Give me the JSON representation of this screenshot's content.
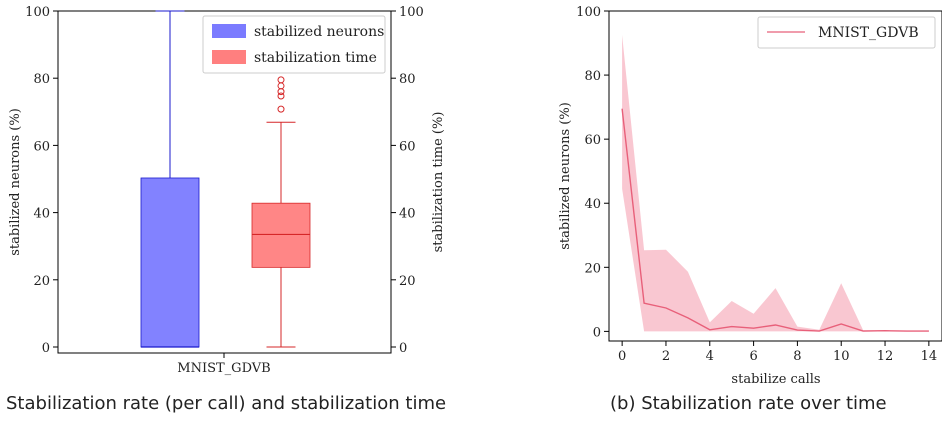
{
  "panel_a": {
    "caption": "Stabilization rate (per call) and stabilization time",
    "chart_data": {
      "type": "box",
      "categories": [
        "MNIST_GDVB"
      ],
      "ylabel_left": "stabilized neurons (%)",
      "ylabel_right": "stabilization time (%)",
      "ylim": [
        0,
        100
      ],
      "yticks": [
        0,
        20,
        40,
        60,
        80,
        100
      ],
      "legend": {
        "placement": "top-right"
      },
      "series": [
        {
          "name": "stabilized neurons",
          "color": "#7b7bff",
          "edge": "#1a1acc",
          "min": 0,
          "q1": 0,
          "median": 0,
          "q3": 50.3,
          "max": 100,
          "outliers": []
        },
        {
          "name": "stabilization time",
          "color": "#ff7f7f",
          "edge": "#d62728",
          "min": 0,
          "q1": 23.7,
          "median": 33.5,
          "q3": 42.8,
          "max": 66.9,
          "outliers": [
            70.8,
            74.7,
            76.0,
            77.7,
            79.5
          ]
        }
      ]
    }
  },
  "panel_b": {
    "caption": "(b) Stabilization rate over time",
    "chart_data": {
      "type": "line",
      "xlabel": "stabilize calls",
      "ylabel": "stabilized neurons (%)",
      "xlim": [
        -0.6,
        14.6
      ],
      "ylim": [
        -3,
        100
      ],
      "xticks": [
        0,
        2,
        4,
        6,
        8,
        10,
        12,
        14
      ],
      "yticks": [
        0,
        20,
        40,
        60,
        80,
        100
      ],
      "legend": {
        "placement": "top-right"
      },
      "series": [
        {
          "name": "MNIST_GDVB",
          "color": "#e8607a",
          "band_color": "#f7b9c6",
          "x": [
            0,
            1,
            2,
            3,
            4,
            5,
            6,
            7,
            8,
            9,
            10,
            11,
            12,
            13,
            14
          ],
          "y": [
            69.5,
            8.8,
            7.3,
            4.2,
            0.5,
            1.5,
            1.0,
            2.0,
            0.4,
            0.1,
            2.3,
            0.1,
            0.2,
            0.1,
            0.1
          ],
          "lower": [
            44.5,
            0,
            0,
            0,
            0,
            0,
            0,
            0,
            0,
            0,
            0,
            0,
            0,
            0,
            0
          ],
          "upper": [
            92.5,
            25.3,
            25.5,
            18.6,
            2.8,
            9.5,
            5.5,
            13.5,
            1.5,
            0.5,
            15.0,
            0.4,
            0.3,
            0.2,
            0.2
          ]
        }
      ]
    }
  }
}
